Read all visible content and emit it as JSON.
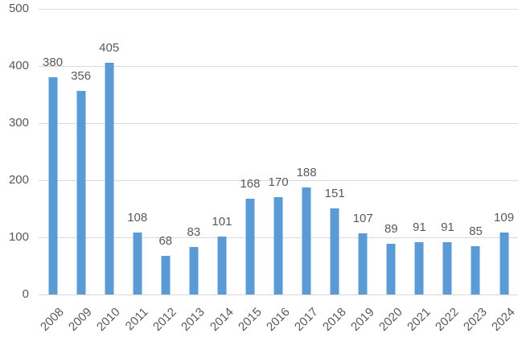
{
  "chart_data": {
    "type": "bar",
    "title": "",
    "xlabel": "",
    "ylabel": "",
    "categories": [
      "2008",
      "2009",
      "2010",
      "2011",
      "2012",
      "2013",
      "2014",
      "2015",
      "2016",
      "2017",
      "2018",
      "2019",
      "2020",
      "2021",
      "2022",
      "2023",
      "2024"
    ],
    "values": [
      380,
      356,
      405,
      108,
      68,
      83,
      101,
      168,
      170,
      188,
      151,
      107,
      89,
      91,
      91,
      85,
      109
    ],
    "ylim": [
      0,
      500
    ],
    "yticks": [
      0,
      100,
      200,
      300,
      400,
      500
    ],
    "grid": true,
    "legend": false,
    "data_labels": true,
    "x_tick_rotation_deg": 45,
    "colors": {
      "bar": "#5B9BD5",
      "gridline": "#D9D9D9",
      "axis_line": "#D9D9D9",
      "text": "#595959",
      "background": "#FFFFFF"
    }
  }
}
